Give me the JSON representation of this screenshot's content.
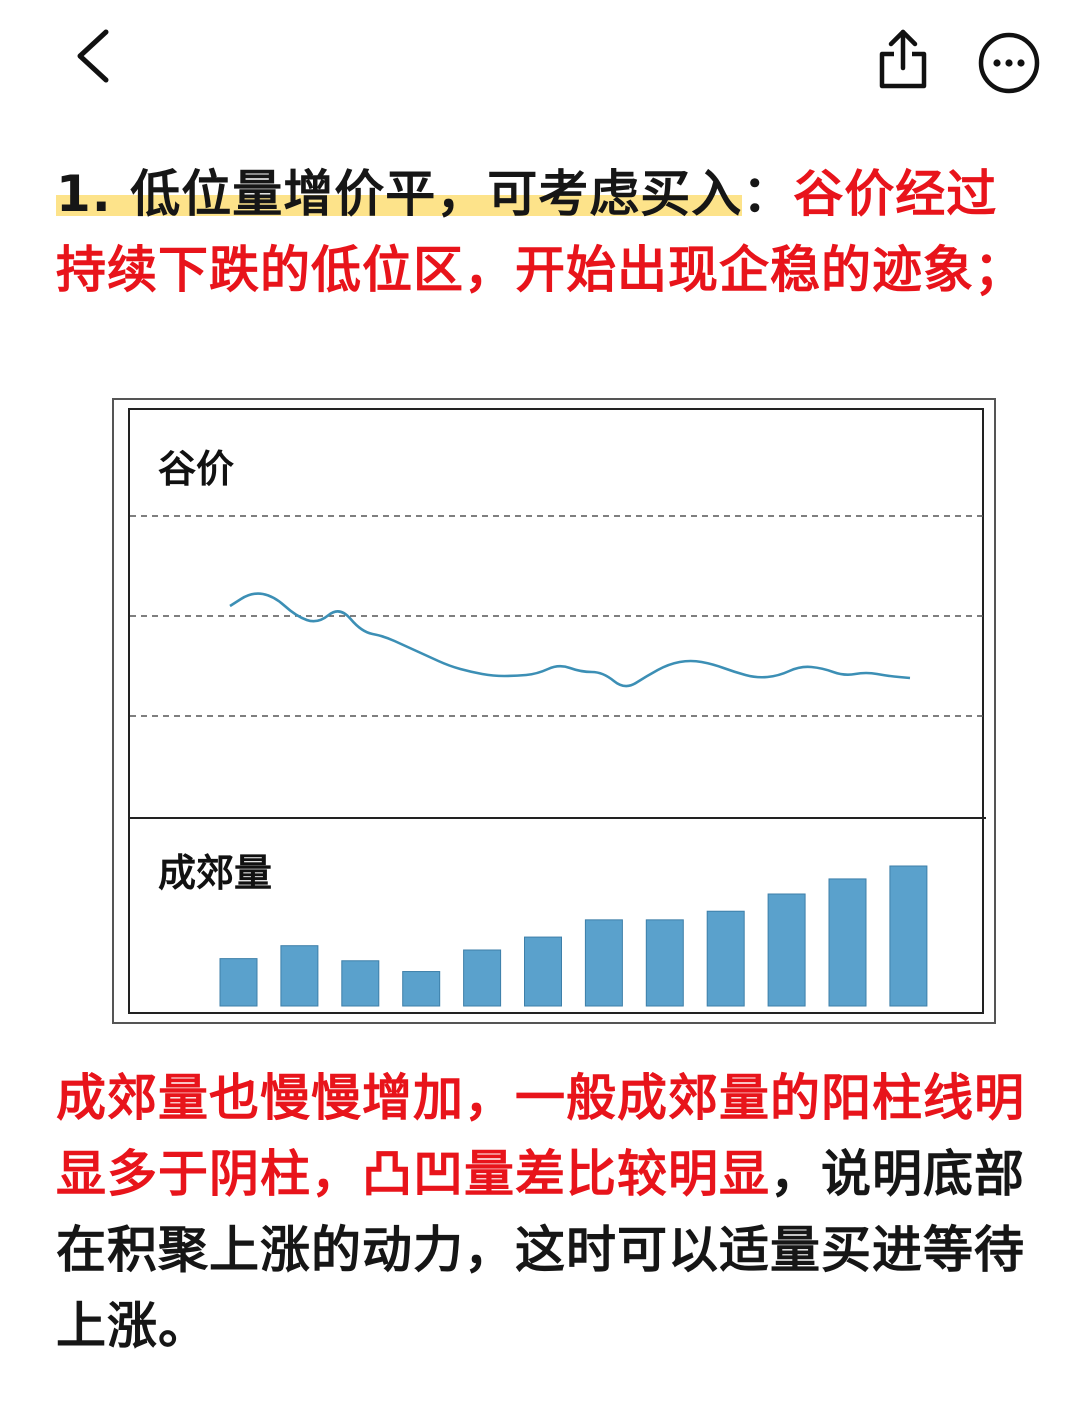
{
  "toolbar": {
    "back_icon": "chevron-left-icon",
    "share_icon": "share-icon",
    "more_icon": "more-icon"
  },
  "para1": {
    "heading": "1. 低位量增价平，可考虑买入",
    "colon": "：",
    "red_text": "谷价经过持续下跌的低位区，开始出现企稳的迹象；"
  },
  "chart_data": {
    "type": "line+bar",
    "panels": [
      {
        "title": "谷价",
        "type": "line",
        "grid": "dashed",
        "series": [
          {
            "values": [
              0.55,
              0.62,
              0.6,
              0.5,
              0.46,
              0.55,
              0.42,
              0.4,
              0.35,
              0.3,
              0.25,
              0.22,
              0.2,
              0.2,
              0.21,
              0.26,
              0.22,
              0.22,
              0.13,
              0.2,
              0.26,
              0.28,
              0.26,
              0.22,
              0.19,
              0.2,
              0.25,
              0.24,
              0.2,
              0.22,
              0.2,
              0.19
            ]
          }
        ]
      },
      {
        "title": "成郊量",
        "type": "bar",
        "values": [
          2.2,
          2.8,
          2.1,
          1.6,
          2.6,
          3.2,
          4.0,
          4.0,
          4.4,
          5.2,
          5.9,
          6.5
        ]
      }
    ]
  },
  "colors": {
    "red": "#e8141b",
    "highlight": "#fde38a",
    "line": "#3c8fb5",
    "bar": "#5aa1cc"
  },
  "para2": {
    "red_text": "成郊量也慢慢增加，一般成郊量的阳柱线明显多于阴柱，凸凹量差比较明显",
    "black_text": "，说明底部在积聚上涨的动力，这时可以适量买进等待上涨。"
  }
}
